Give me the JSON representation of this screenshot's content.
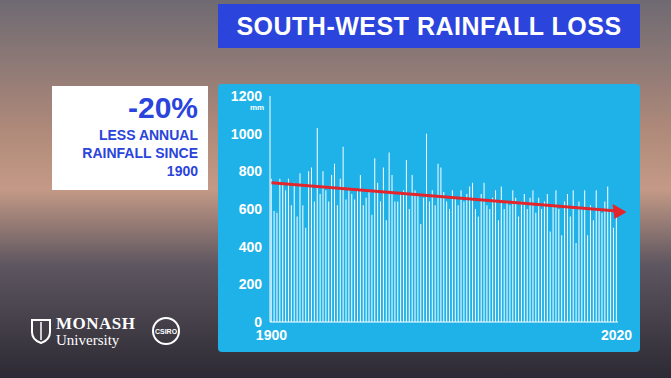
{
  "chart_data": {
    "type": "bar",
    "title": "SOUTH-WEST RAINFALL LOSS",
    "y_label": "mm",
    "annotation": {
      "headline": "-20%",
      "text": "LESS ANNUAL RAINFALL SINCE 1900"
    },
    "logos": {
      "monash": [
        "MONASH",
        "University"
      ],
      "csiro": "CSIRO"
    },
    "categories": [
      "1900",
      null,
      null,
      null,
      null,
      null,
      null,
      null,
      null,
      null,
      null,
      null,
      null,
      null,
      null,
      null,
      null,
      null,
      null,
      null,
      null,
      null,
      null,
      null,
      null,
      null,
      null,
      null,
      null,
      null,
      null,
      null,
      null,
      null,
      null,
      null,
      null,
      null,
      null,
      null,
      null,
      null,
      null,
      null,
      null,
      null,
      null,
      null,
      null,
      null,
      null,
      null,
      null,
      null,
      null,
      null,
      null,
      null,
      null,
      null,
      null,
      null,
      null,
      null,
      null,
      null,
      null,
      null,
      null,
      null,
      null,
      null,
      null,
      null,
      null,
      null,
      null,
      null,
      null,
      null,
      null,
      null,
      null,
      null,
      null,
      null,
      null,
      null,
      null,
      null,
      null,
      null,
      null,
      null,
      null,
      null,
      null,
      null,
      null,
      null,
      null,
      null,
      null,
      null,
      null,
      null,
      null,
      null,
      null,
      null,
      null,
      null,
      null,
      null,
      null,
      null,
      null,
      null,
      null,
      null,
      "2020"
    ],
    "values": [
      760,
      590,
      580,
      760,
      740,
      700,
      760,
      620,
      740,
      560,
      790,
      620,
      500,
      800,
      820,
      640,
      1030,
      680,
      800,
      700,
      640,
      780,
      840,
      620,
      760,
      930,
      650,
      700,
      680,
      650,
      700,
      780,
      620,
      660,
      690,
      570,
      870,
      740,
      640,
      820,
      540,
      900,
      780,
      640,
      640,
      680,
      700,
      860,
      600,
      780,
      700,
      680,
      520,
      660,
      1000,
      640,
      700,
      620,
      840,
      820,
      690,
      640,
      600,
      700,
      660,
      620,
      700,
      640,
      680,
      720,
      740,
      600,
      560,
      680,
      740,
      620,
      600,
      660,
      700,
      540,
      720,
      600,
      640,
      620,
      700,
      660,
      560,
      640,
      680,
      600,
      660,
      700,
      580,
      660,
      600,
      640,
      680,
      480,
      620,
      700,
      600,
      460,
      640,
      680,
      560,
      700,
      420,
      640,
      600,
      700,
      460,
      620,
      540,
      700,
      600,
      580,
      640,
      720,
      600,
      500,
      560
    ],
    "trend": [
      740,
      590
    ],
    "color": "#ffffff",
    "trend_color": "#e3262c",
    "ylim": [
      0,
      1200
    ],
    "yticks": [
      0,
      200,
      400,
      600,
      800,
      1000,
      1200
    ],
    "grid": false
  }
}
